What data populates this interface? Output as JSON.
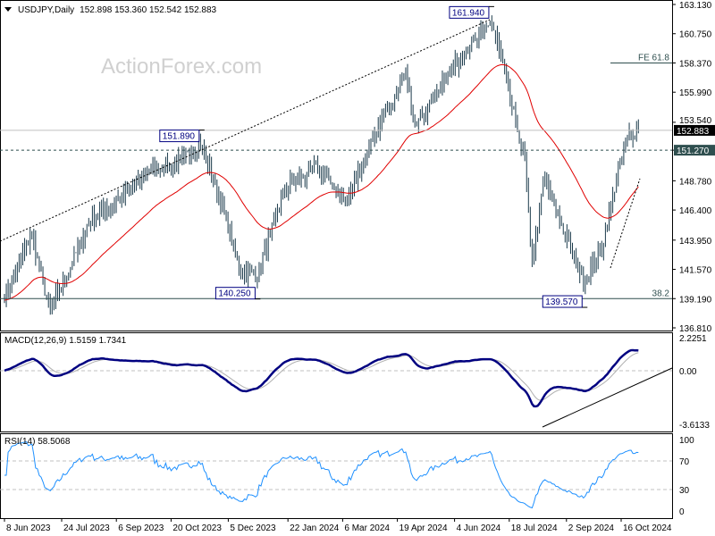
{
  "header": {
    "symbol": "USDJPY,Daily",
    "ohlc": "152.898 153.360 152.542 152.883"
  },
  "watermark": "ActionForex.com",
  "colors": {
    "bars": "#1b3a4b",
    "ma": "#e00000",
    "macd": "#000080",
    "signal": "#b0b0b0",
    "rsi": "#1e90ff",
    "current_price_bg": "#000000",
    "level_bg": "#2f4f4f"
  },
  "chart_data": {
    "type": "ohlc",
    "price_axis": {
      "ticks": [
        "163.130",
        "160.750",
        "158.370",
        "155.990",
        "153.540",
        "151.270",
        "148.780",
        "146.400",
        "143.950",
        "141.570",
        "139.190",
        "136.810"
      ],
      "range": [
        136.81,
        163.13
      ]
    },
    "current_price": "152.883",
    "level": "151.270",
    "annotations": [
      {
        "text": "161.940",
        "price": 161.94,
        "date": "2024-07-03"
      },
      {
        "text": "151.890",
        "price": 151.89,
        "date": "2023-11-13"
      },
      {
        "text": "140.250",
        "price": 140.25,
        "date": "2023-12-28"
      },
      {
        "text": "139.570",
        "price": 139.57,
        "date": "2024-09-16"
      }
    ],
    "fib": [
      {
        "text": "FE 61.8",
        "price": 158.37
      },
      {
        "text": "38.2",
        "price": 139.19
      }
    ],
    "close_path": [
      [
        "2023-06-08",
        139.5
      ],
      [
        "2023-06-30",
        144.5
      ],
      [
        "2023-07-14",
        138.2
      ],
      [
        "2023-07-28",
        141
      ],
      [
        "2023-08-15",
        145.5
      ],
      [
        "2023-09-15",
        147.8
      ],
      [
        "2023-10-03",
        149.8
      ],
      [
        "2023-10-20",
        149.9
      ],
      [
        "2023-11-13",
        151.8
      ],
      [
        "2023-11-28",
        147.5
      ],
      [
        "2023-12-14",
        141.5
      ],
      [
        "2023-12-28",
        141.0
      ],
      [
        "2024-01-19",
        148.1
      ],
      [
        "2024-02-15",
        150.0
      ],
      [
        "2024-03-08",
        147.0
      ],
      [
        "2024-03-27",
        151.3
      ],
      [
        "2024-04-26",
        157.8
      ],
      [
        "2024-05-03",
        153.0
      ],
      [
        "2024-05-29",
        157.5
      ],
      [
        "2024-06-28",
        161.0
      ],
      [
        "2024-07-03",
        161.9
      ],
      [
        "2024-07-11",
        159.0
      ],
      [
        "2024-07-31",
        150.0
      ],
      [
        "2024-08-05",
        142.0
      ],
      [
        "2024-08-15",
        149.0
      ],
      [
        "2024-09-16",
        140.5
      ],
      [
        "2024-10-01",
        143.5
      ],
      [
        "2024-10-14",
        149.7
      ],
      [
        "2024-10-23",
        152.6
      ],
      [
        "2024-10-31",
        152.883
      ]
    ],
    "macd": {
      "label": "MACD(12,26,9) 1.5159 1.7341",
      "ticks": [
        "2.2251",
        "0.00",
        "-3.6133"
      ],
      "range": [
        -3.6133,
        2.2251
      ]
    },
    "rsi": {
      "label": "RSI(14) 58.5068",
      "ticks": [
        "100",
        "70",
        "30",
        "0"
      ]
    },
    "x_ticks": [
      [
        "2023-06-08",
        "8 Jun 2023"
      ],
      [
        "2023-07-24",
        "24 Jul 2023"
      ],
      [
        "2023-09-06",
        "6 Sep 2023"
      ],
      [
        "2023-10-20",
        "20 Oct 2023"
      ],
      [
        "2023-12-05",
        "5 Dec 2023"
      ],
      [
        "2024-01-22",
        "22 Jan 2024"
      ],
      [
        "2024-03-06",
        "6 Mar 2024"
      ],
      [
        "2024-04-19",
        "19 Apr 2024"
      ],
      [
        "2024-06-04",
        "4 Jun 2024"
      ],
      [
        "2024-07-18",
        "18 Jul 2024"
      ],
      [
        "2024-09-02",
        "2 Sep 2024"
      ],
      [
        "2024-10-16",
        "16 Oct 2024"
      ]
    ]
  }
}
